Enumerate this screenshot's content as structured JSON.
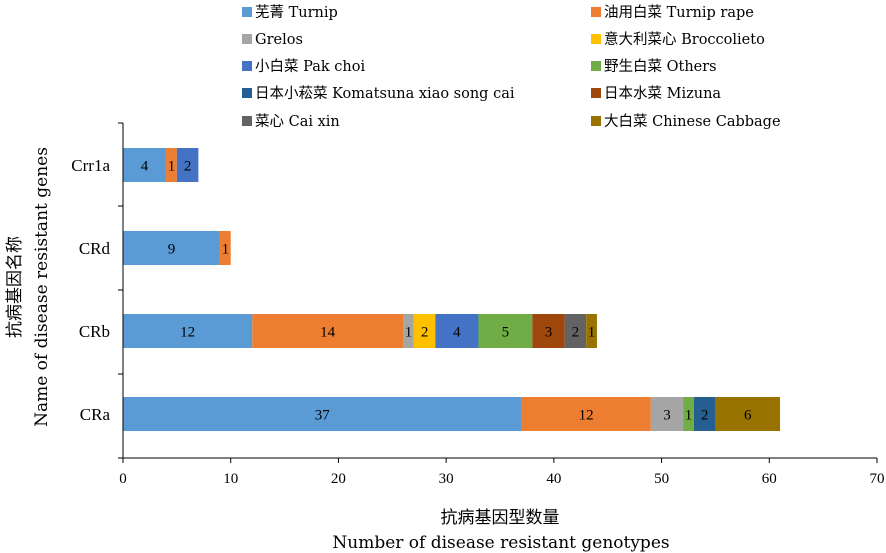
{
  "chart_data": {
    "type": "bar",
    "orientation": "horizontal",
    "stacked": true,
    "categories": [
      "CRa",
      "CRb",
      "CRd",
      "Crr1a"
    ],
    "series": [
      {
        "name": "芜菁 Turnip",
        "color": "#5b9bd5",
        "values": [
          37,
          12,
          9,
          4
        ]
      },
      {
        "name": "油用白菜 Turnip rape",
        "color": "#ed7d31",
        "values": [
          12,
          14,
          1,
          1
        ]
      },
      {
        "name": "Grelos",
        "color": "#a5a5a5",
        "values": [
          3,
          1,
          0,
          0
        ]
      },
      {
        "name": "意大利菜心 Broccolieto",
        "color": "#ffc000",
        "values": [
          0,
          2,
          0,
          0
        ]
      },
      {
        "name": "小白菜 Pak choi",
        "color": "#4472c4",
        "values": [
          0,
          4,
          0,
          2
        ]
      },
      {
        "name": "野生白菜 Others",
        "color": "#70ad47",
        "values": [
          1,
          5,
          0,
          0
        ]
      },
      {
        "name": "日本小菘菜 Komatsuna xiao song cai",
        "color": "#255e91",
        "values": [
          2,
          0,
          0,
          0
        ]
      },
      {
        "name": "日本水菜 Mizuna",
        "color": "#9e480e",
        "values": [
          0,
          3,
          0,
          0
        ]
      },
      {
        "name": "菜心 Cai xin",
        "color": "#636363",
        "values": [
          0,
          2,
          0,
          0
        ]
      },
      {
        "name": "大白菜 Chinese Cabbage",
        "color": "#997300",
        "values": [
          6,
          1,
          0,
          0
        ]
      }
    ],
    "xlim": [
      0,
      70
    ],
    "xticks": [
      0,
      10,
      20,
      30,
      40,
      50,
      60,
      70
    ],
    "xlabel_cn": "抗病基因型数量",
    "xlabel_en": "Number of disease resistant genotypes",
    "ylabel_cn": "抗病基因名称",
    "ylabel_en": "Name of disease resistant genes",
    "grid": false,
    "legend_position": "top"
  }
}
